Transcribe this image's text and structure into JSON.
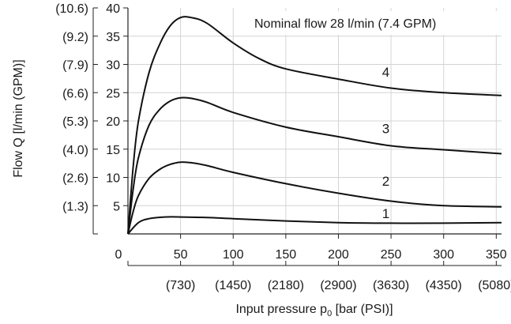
{
  "chart_data": {
    "type": "line",
    "title": "",
    "annotation": "Nominal flow 28 l/min (7.4 GPM)",
    "xlabel": {
      "main": "Input pressure p",
      "sub": "0",
      "tail": " [bar (PSI)]"
    },
    "ylabel": "Flow Q [l/min (GPM)]",
    "xlim": [
      0,
      355
    ],
    "ylim": [
      0,
      40
    ],
    "grid": true,
    "x_ticks": [
      {
        "value": 50,
        "label": "50"
      },
      {
        "value": 100,
        "label": "100"
      },
      {
        "value": 150,
        "label": "150"
      },
      {
        "value": 200,
        "label": "200"
      },
      {
        "value": 250,
        "label": "250"
      },
      {
        "value": 300,
        "label": "300"
      },
      {
        "value": 350,
        "label": "350"
      }
    ],
    "x_zero_label": "0",
    "x_psi_ticks": [
      {
        "value": 50,
        "label": "(730)"
      },
      {
        "value": 100,
        "label": "(1450)"
      },
      {
        "value": 150,
        "label": "(2180)"
      },
      {
        "value": 200,
        "label": "(2900)"
      },
      {
        "value": 250,
        "label": "(3630)"
      },
      {
        "value": 300,
        "label": "(4350)"
      },
      {
        "value": 350,
        "label": "(5080)"
      }
    ],
    "y_ticks": [
      {
        "value": 5,
        "label": "5"
      },
      {
        "value": 10,
        "label": "10"
      },
      {
        "value": 15,
        "label": "15"
      },
      {
        "value": 20,
        "label": "20"
      },
      {
        "value": 25,
        "label": "25"
      },
      {
        "value": 30,
        "label": "30"
      },
      {
        "value": 35,
        "label": "35"
      },
      {
        "value": 40,
        "label": "40"
      }
    ],
    "y_gpm_ticks": [
      {
        "value": 5,
        "label": "(1.3)"
      },
      {
        "value": 10,
        "label": "(2.6)"
      },
      {
        "value": 15,
        "label": "(4.0)"
      },
      {
        "value": 20,
        "label": "(5.3)"
      },
      {
        "value": 25,
        "label": "(6.6)"
      },
      {
        "value": 30,
        "label": "(7.9)"
      },
      {
        "value": 35,
        "label": "(9.2)"
      },
      {
        "value": 40,
        "label": "(10.6)"
      }
    ],
    "series": [
      {
        "name": "1",
        "label_at": [
          245,
          2.8
        ],
        "x": [
          0,
          10,
          20,
          35,
          50,
          75,
          100,
          150,
          200,
          250,
          300,
          355
        ],
        "y": [
          0,
          2.0,
          2.7,
          3.0,
          3.0,
          2.9,
          2.7,
          2.3,
          2.0,
          1.9,
          1.9,
          2.0
        ]
      },
      {
        "name": "2",
        "label_at": [
          245,
          8.5
        ],
        "x": [
          0,
          5,
          10,
          20,
          30,
          40,
          50,
          60,
          75,
          100,
          150,
          200,
          250,
          300,
          355
        ],
        "y": [
          0,
          4.0,
          6.8,
          9.8,
          11.4,
          12.3,
          12.7,
          12.6,
          12.1,
          10.9,
          8.9,
          7.2,
          5.8,
          5.0,
          4.8
        ]
      },
      {
        "name": "3",
        "label_at": [
          245,
          17.8
        ],
        "x": [
          0,
          5,
          10,
          20,
          30,
          40,
          50,
          60,
          75,
          100,
          150,
          200,
          250,
          300,
          355
        ],
        "y": [
          0,
          8.0,
          13.5,
          19.2,
          22.0,
          23.5,
          24.1,
          24.0,
          23.3,
          21.5,
          18.9,
          17.2,
          15.6,
          14.9,
          14.2
        ]
      },
      {
        "name": "4",
        "label_at": [
          245,
          27.8
        ],
        "x": [
          0,
          5,
          10,
          20,
          30,
          40,
          50,
          60,
          75,
          100,
          125,
          150,
          200,
          250,
          300,
          355
        ],
        "y": [
          0,
          12.0,
          20.0,
          28.5,
          33.5,
          36.8,
          38.3,
          38.3,
          37.3,
          33.8,
          31.0,
          29.2,
          27.4,
          25.8,
          25.0,
          24.5
        ]
      }
    ]
  }
}
